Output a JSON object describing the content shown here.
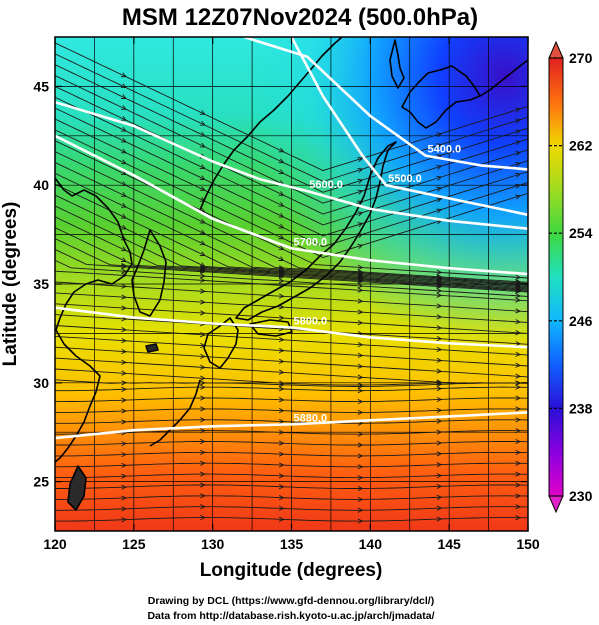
{
  "title": "MSM 12Z07Nov2024 (500.0hPa)",
  "credits": [
    "Drawing by DCL (https://www.gfd-dennou.org/library/dcl/)",
    "Data from http://database.rish.kyoto-u.ac.jp/arch/jmadata/"
  ],
  "chart_data": {
    "type": "heatmap",
    "xlabel": "Longitude (degrees)",
    "ylabel": "Latitude  (degrees)",
    "xlim": [
      120,
      150
    ],
    "ylim": [
      22.5,
      47.5
    ],
    "x_ticks": [
      120,
      125,
      130,
      135,
      140,
      145,
      150
    ],
    "y_ticks": [
      25,
      30,
      35,
      40,
      45
    ],
    "grid": true,
    "colorbar": {
      "range": [
        230,
        270
      ],
      "ticks": [
        230,
        238,
        246,
        254,
        262,
        270
      ],
      "colors": [
        "#e000c8",
        "#8a00e0",
        "#2a10d8",
        "#1060ff",
        "#10b8ff",
        "#20e8d0",
        "#30e070",
        "#50d020",
        "#98dc20",
        "#e0e000",
        "#ffb000",
        "#ff7010",
        "#ff3010",
        "#e02020"
      ]
    },
    "contours": [
      {
        "label": "5400.0",
        "points": [
          [
            132,
            47.5
          ],
          [
            136,
            46.5
          ],
          [
            140,
            43.5
          ],
          [
            143.5,
            41.5
          ],
          [
            147,
            41
          ],
          [
            150,
            40.8
          ]
        ]
      },
      {
        "label": "5500.0",
        "points": [
          [
            135,
            47.5
          ],
          [
            137,
            44.5
          ],
          [
            139.5,
            41.5
          ],
          [
            141,
            40
          ],
          [
            144,
            39.5
          ],
          [
            150,
            38.5
          ]
        ]
      },
      {
        "label": "5600.0",
        "points": [
          [
            120,
            44.2
          ],
          [
            125,
            43
          ],
          [
            130,
            41.2
          ],
          [
            133,
            40.3
          ],
          [
            136,
            39.7
          ],
          [
            140,
            38.8
          ],
          [
            145,
            38.2
          ],
          [
            150,
            37.8
          ]
        ]
      },
      {
        "label": "5700.0",
        "points": [
          [
            120,
            42.5
          ],
          [
            125,
            40.5
          ],
          [
            130,
            38.3
          ],
          [
            135,
            36.8
          ],
          [
            140,
            36.2
          ],
          [
            145,
            35.8
          ],
          [
            150,
            35.5
          ]
        ]
      },
      {
        "label": "5800.0",
        "points": [
          [
            120,
            33.8
          ],
          [
            125,
            33.3
          ],
          [
            130,
            33
          ],
          [
            135,
            32.8
          ],
          [
            140,
            32.3
          ],
          [
            145,
            32
          ],
          [
            150,
            31.8
          ]
        ]
      },
      {
        "label": "5880.0",
        "points": [
          [
            120,
            27.2
          ],
          [
            125,
            27.6
          ],
          [
            130,
            27.8
          ],
          [
            135,
            27.9
          ],
          [
            140,
            28.1
          ],
          [
            145,
            28.3
          ],
          [
            150,
            28.5
          ]
        ]
      }
    ]
  }
}
